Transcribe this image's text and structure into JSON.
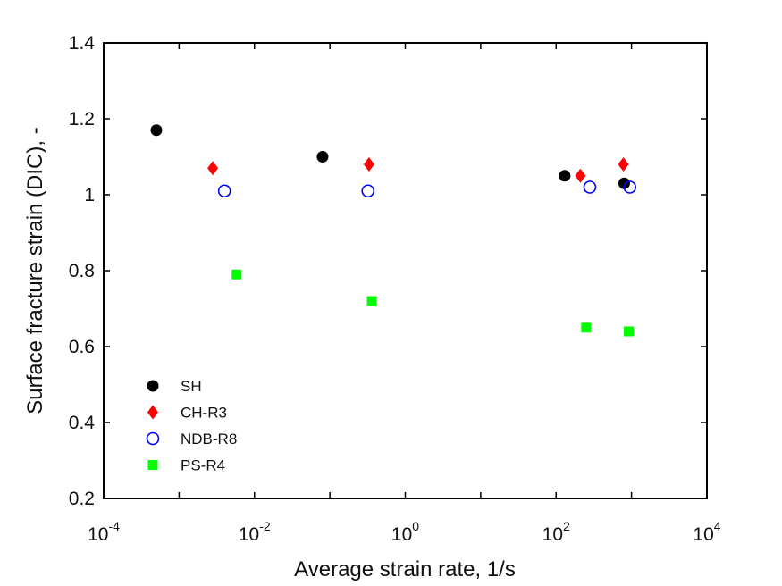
{
  "chart_data": {
    "type": "scatter",
    "title": "",
    "xlabel": "Average strain rate, 1/s",
    "ylabel": "Surface fracture strain (DIC), -",
    "xscale": "log",
    "xlim": [
      0.0001,
      10000
    ],
    "ylim": [
      0.2,
      1.4
    ],
    "x_ticks": [
      {
        "base": "10",
        "exp": "-4",
        "value": 0.0001
      },
      {
        "base": "10",
        "exp": "-2",
        "value": 0.01
      },
      {
        "base": "10",
        "exp": "0",
        "value": 1
      },
      {
        "base": "10",
        "exp": "2",
        "value": 100
      },
      {
        "base": "10",
        "exp": "4",
        "value": 10000
      }
    ],
    "y_ticks": [
      {
        "label": "0.2",
        "value": 0.2
      },
      {
        "label": "0.4",
        "value": 0.4
      },
      {
        "label": "0.6",
        "value": 0.6
      },
      {
        "label": "0.8",
        "value": 0.8
      },
      {
        "label": "1",
        "value": 1.0
      },
      {
        "label": "1.2",
        "value": 1.2
      },
      {
        "label": "1.4",
        "value": 1.4
      }
    ],
    "grid": false,
    "legend_position": "bottom-left",
    "series": [
      {
        "name": "SH",
        "marker": "filled-circle",
        "color": "#000000",
        "x": [
          0.0005,
          0.08,
          130,
          800
        ],
        "y": [
          1.17,
          1.1,
          1.05,
          1.03
        ]
      },
      {
        "name": "CH-R3",
        "marker": "filled-diamond",
        "color": "#ff0000",
        "x": [
          0.0028,
          0.33,
          210,
          780
        ],
        "y": [
          1.07,
          1.08,
          1.05,
          1.08
        ]
      },
      {
        "name": "NDB-R8",
        "marker": "open-circle",
        "color": "#0000ff",
        "x": [
          0.004,
          0.32,
          280,
          950
        ],
        "y": [
          1.01,
          1.01,
          1.02,
          1.02
        ]
      },
      {
        "name": "PS-R4",
        "marker": "filled-square",
        "color": "#00ff00",
        "x": [
          0.0058,
          0.36,
          250,
          920
        ],
        "y": [
          0.79,
          0.72,
          0.65,
          0.64
        ]
      }
    ]
  }
}
